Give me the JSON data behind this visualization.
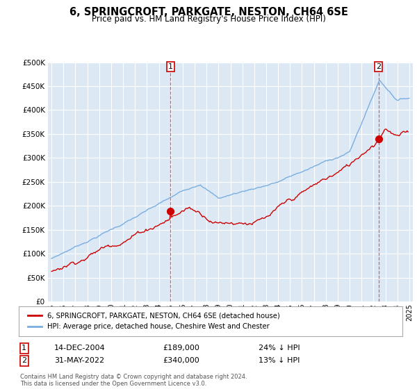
{
  "title": "6, SPRINGCROFT, PARKGATE, NESTON, CH64 6SE",
  "subtitle": "Price paid vs. HM Land Registry's House Price Index (HPI)",
  "ytick_values": [
    0,
    50000,
    100000,
    150000,
    200000,
    250000,
    300000,
    350000,
    400000,
    450000,
    500000
  ],
  "xlim_start": 1994.7,
  "xlim_end": 2025.3,
  "ylim": [
    0,
    500000
  ],
  "bg_color": "#dce9f5",
  "grid_color": "#ffffff",
  "hpi_color": "#7aade0",
  "price_color": "#cc0000",
  "sale1_x": 2004.96,
  "sale1_y": 189000,
  "sale2_x": 2022.42,
  "sale2_y": 340000,
  "sale1_label": "14-DEC-2004",
  "sale2_label": "31-MAY-2022",
  "sale1_price": "£189,000",
  "sale2_price": "£340,000",
  "sale1_pct": "24% ↓ HPI",
  "sale2_pct": "13% ↓ HPI",
  "legend_red": "6, SPRINGCROFT, PARKGATE, NESTON, CH64 6SE (detached house)",
  "legend_blue": "HPI: Average price, detached house, Cheshire West and Chester",
  "footnote": "Contains HM Land Registry data © Crown copyright and database right 2024.\nThis data is licensed under the Open Government Licence v3.0.",
  "xtick_years": [
    1995,
    1996,
    1997,
    1998,
    1999,
    2000,
    2001,
    2002,
    2003,
    2004,
    2005,
    2006,
    2007,
    2008,
    2009,
    2010,
    2011,
    2012,
    2013,
    2014,
    2015,
    2016,
    2017,
    2018,
    2019,
    2020,
    2021,
    2022,
    2023,
    2024,
    2025
  ]
}
